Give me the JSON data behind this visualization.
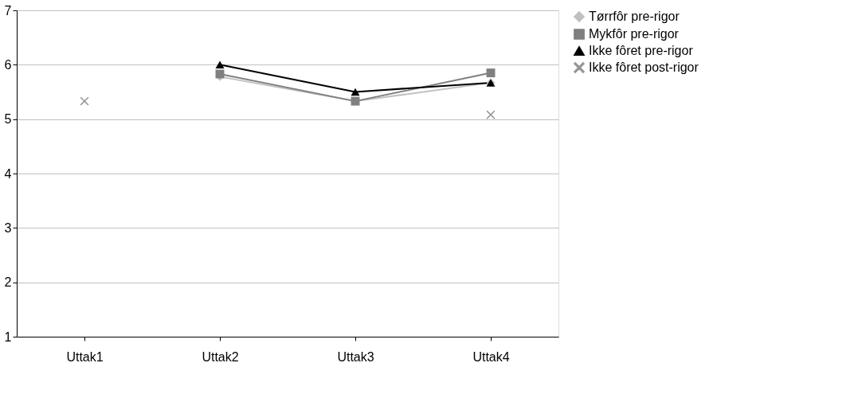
{
  "chart_data": {
    "type": "line",
    "categories": [
      "Uttak1",
      "Uttak2",
      "Uttak3",
      "Uttak4"
    ],
    "series": [
      {
        "name": "Tørrfôr pre-rigor",
        "color": "#c0c0c0",
        "marker": "diamond",
        "values": [
          null,
          5.78,
          5.33,
          5.67
        ]
      },
      {
        "name": "Mykfôr pre-rigor",
        "color": "#808080",
        "marker": "square",
        "values": [
          null,
          5.83,
          5.33,
          5.85
        ]
      },
      {
        "name": "Ikke fôret pre-rigor",
        "color": "#000000",
        "marker": "triangle",
        "values": [
          null,
          6.0,
          5.5,
          5.67
        ]
      },
      {
        "name": "Ikke fôret post-rigor",
        "color": "#969696",
        "marker": "cross",
        "type": "scatter",
        "values": [
          5.33,
          null,
          null,
          5.08
        ]
      }
    ],
    "ylim": [
      1,
      7
    ],
    "yticks": [
      1,
      2,
      3,
      4,
      5,
      6,
      7
    ],
    "grid": "y",
    "legend": "right"
  }
}
